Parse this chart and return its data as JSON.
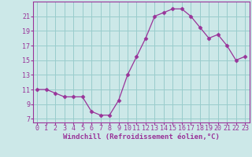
{
  "x": [
    0,
    1,
    2,
    3,
    4,
    5,
    6,
    7,
    8,
    9,
    10,
    11,
    12,
    13,
    14,
    15,
    16,
    17,
    18,
    19,
    20,
    21,
    22,
    23
  ],
  "y": [
    11,
    11,
    10.5,
    10,
    10,
    10,
    8,
    7.5,
    7.5,
    9.5,
    13,
    15.5,
    18,
    21,
    21.5,
    22,
    22,
    21,
    19.5,
    18,
    18.5,
    17,
    15,
    15.5
  ],
  "line_color": "#993399",
  "marker": "D",
  "marker_size": 2.5,
  "bg_color": "#cce8e8",
  "grid_color": "#99cccc",
  "xlabel": "Windchill (Refroidissement éolien,°C)",
  "xlabel_fontsize": 6.5,
  "tick_fontsize": 6.0,
  "ylim": [
    6.5,
    23.0
  ],
  "yticks": [
    7,
    9,
    11,
    13,
    15,
    17,
    19,
    21
  ],
  "xlim": [
    -0.5,
    23.5
  ],
  "xticks": [
    0,
    1,
    2,
    3,
    4,
    5,
    6,
    7,
    8,
    9,
    10,
    11,
    12,
    13,
    14,
    15,
    16,
    17,
    18,
    19,
    20,
    21,
    22,
    23
  ]
}
